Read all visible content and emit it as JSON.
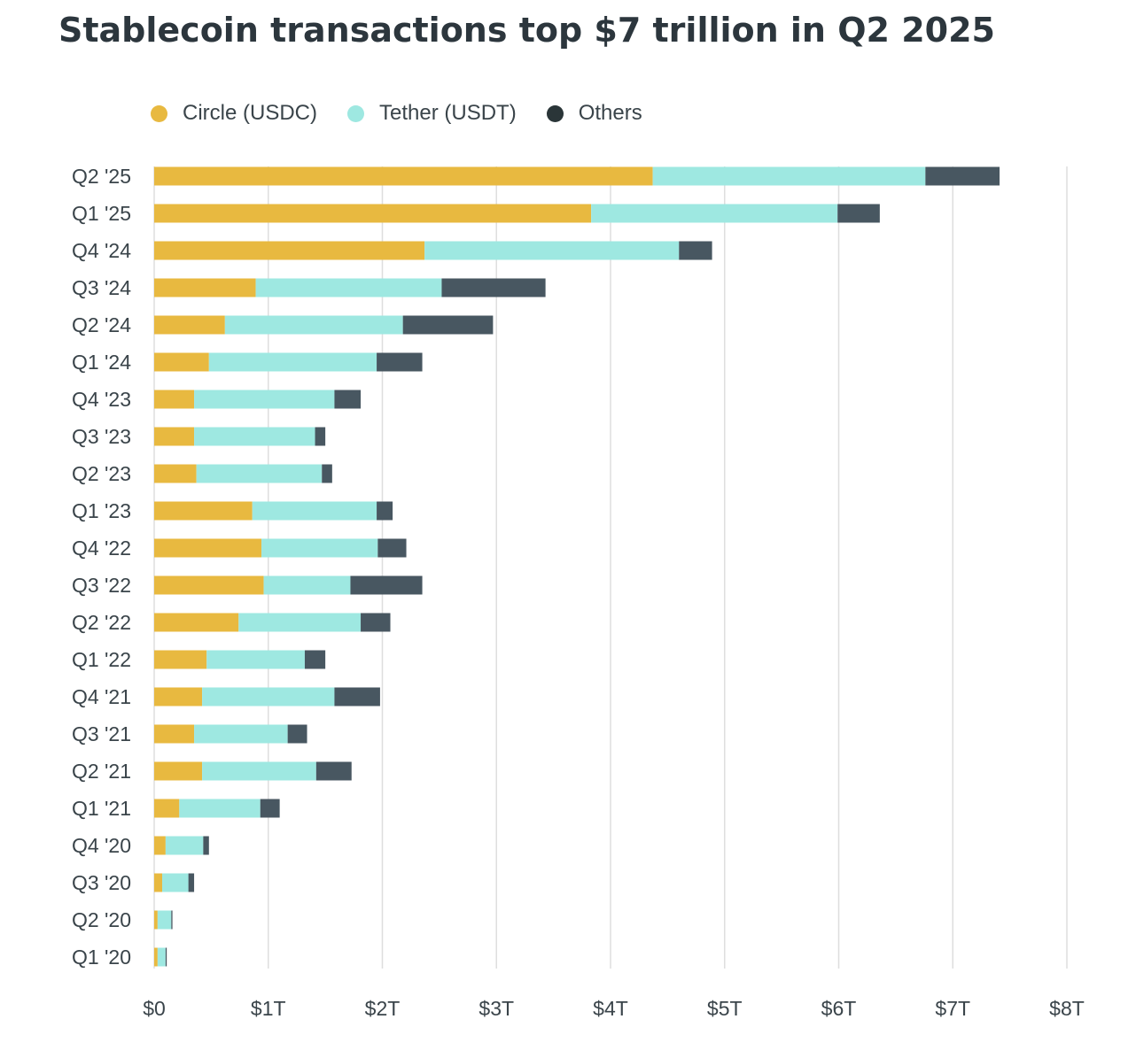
{
  "title": "Stablecoin transactions top $7 trillion in Q2 2025",
  "colors": {
    "circle": "#e8b940",
    "tether": "#9ee8e1",
    "others": "#485761",
    "grid": "#dedede",
    "legend_others": "#2a3538"
  },
  "legend": [
    {
      "label": "Circle (USDC)",
      "color": "#e8b940"
    },
    {
      "label": "Tether (USDT)",
      "color": "#9ee8e1"
    },
    {
      "label": "Others",
      "color": "#2a3538"
    }
  ],
  "chart_data": {
    "type": "bar",
    "orientation": "horizontal",
    "stacked": true,
    "title": "Stablecoin transactions top $7 trillion in Q2 2025",
    "xlabel": "",
    "ylabel": "",
    "x_unit": "trillion USD",
    "xlim": [
      0,
      8
    ],
    "x_ticks": [
      0,
      1,
      2,
      3,
      4,
      5,
      6,
      7,
      8
    ],
    "x_tick_labels": [
      "$0",
      "$1T",
      "$2T",
      "$3T",
      "$4T",
      "$5T",
      "$6T",
      "$7T",
      "$8T"
    ],
    "grid": "vertical",
    "legend_position": "top-left",
    "categories": [
      "Q2 '25",
      "Q1 '25",
      "Q4 '24",
      "Q3 '24",
      "Q2 '24",
      "Q1 '24",
      "Q4 '23",
      "Q3 '23",
      "Q2 '23",
      "Q1 '23",
      "Q4 '22",
      "Q3 '22",
      "Q2 '22",
      "Q1 '22",
      "Q4 '21",
      "Q3 '21",
      "Q2 '21",
      "Q1 '21",
      "Q4 '20",
      "Q3 '20",
      "Q2 '20",
      "Q1 '20"
    ],
    "series": [
      {
        "name": "Circle (USDC)",
        "values": [
          4.37,
          3.83,
          2.37,
          0.89,
          0.62,
          0.48,
          0.35,
          0.35,
          0.37,
          0.86,
          0.94,
          0.96,
          0.74,
          0.46,
          0.42,
          0.35,
          0.42,
          0.22,
          0.1,
          0.07,
          0.03,
          0.03
        ]
      },
      {
        "name": "Tether (USDT)",
        "values": [
          2.39,
          2.16,
          2.23,
          1.63,
          1.56,
          1.47,
          1.23,
          1.06,
          1.1,
          1.09,
          1.02,
          0.76,
          1.07,
          0.86,
          1.16,
          0.82,
          1.0,
          0.71,
          0.33,
          0.23,
          0.12,
          0.07
        ]
      },
      {
        "name": "Others",
        "values": [
          0.65,
          0.37,
          0.29,
          0.91,
          0.79,
          0.4,
          0.23,
          0.09,
          0.09,
          0.14,
          0.25,
          0.63,
          0.26,
          0.18,
          0.4,
          0.17,
          0.31,
          0.17,
          0.05,
          0.05,
          0.01,
          0.01
        ]
      }
    ]
  }
}
